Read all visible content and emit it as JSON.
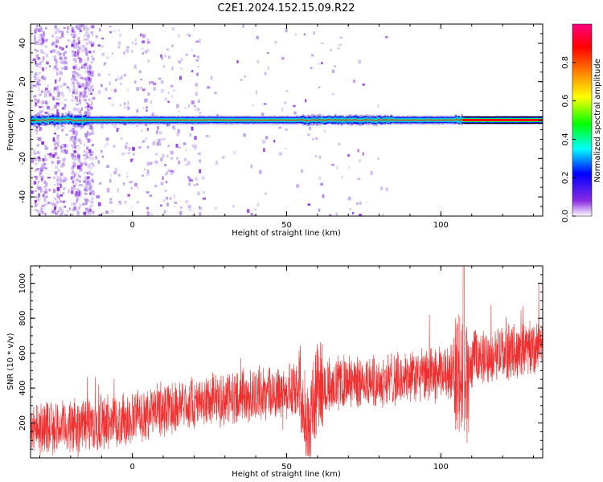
{
  "title": "C2E1.2024.152.15.09.R22",
  "chart_data": [
    {
      "type": "heatmap",
      "xlabel": "Height of straight line (km)",
      "ylabel": "Frequency (Hz)",
      "xlim": [
        -33,
        133
      ],
      "ylim": [
        -50,
        50
      ],
      "xticks": [
        0,
        50,
        100
      ],
      "yticks": [
        -40,
        -20,
        0,
        20,
        40
      ],
      "colorbar": {
        "label": "Normalized spectral amplitude",
        "range": [
          0,
          1
        ],
        "ticks": [
          "0.0",
          "0.2",
          "0.4",
          "0.6",
          "0.8"
        ],
        "colormap": [
          "#ffffff",
          "#8a2be2",
          "#0000ff",
          "#00ffff",
          "#00ff00",
          "#ffff00",
          "#ff8000",
          "#ff0000",
          "#ff007f"
        ]
      },
      "band_center_hz": 0,
      "grid": false
    },
    {
      "type": "line",
      "xlabel": "Height of straight line (km)",
      "ylabel": "SNR (10 * v/v)",
      "xlim": [
        -33,
        133
      ],
      "ylim": [
        0,
        1100
      ],
      "xticks": [
        0,
        50,
        100
      ],
      "yticks": [
        200,
        400,
        600,
        800,
        1000
      ],
      "color": "#f03030",
      "trend": {
        "x": [
          -33,
          -20,
          -10,
          0,
          10,
          20,
          30,
          40,
          50,
          55,
          57,
          60,
          70,
          80,
          90,
          100,
          105,
          108,
          110,
          120,
          133
        ],
        "y": [
          170,
          180,
          200,
          230,
          280,
          320,
          340,
          360,
          380,
          400,
          150,
          420,
          430,
          440,
          460,
          480,
          500,
          350,
          560,
          600,
          650
        ]
      },
      "grid": false
    }
  ]
}
